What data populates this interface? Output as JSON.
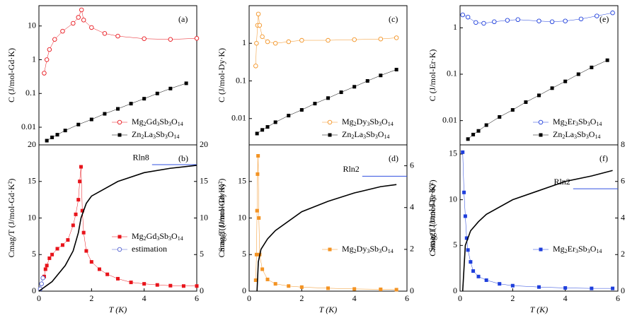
{
  "chart_data": [
    {
      "type": "line",
      "label": "(a)",
      "ylabel": "C (J/mol-Gd·K)",
      "log_y": true,
      "xlim": [
        0,
        6
      ],
      "ylim": [
        0.003,
        40
      ],
      "yticks": [
        0.01,
        0.1,
        1,
        10
      ],
      "legend": "lower right",
      "series": [
        {
          "name": "Mg2Gd3Sb3O14",
          "color": "#e8141b",
          "marker": "circle-open",
          "x": [
            0.2,
            0.3,
            0.4,
            0.6,
            0.9,
            1.3,
            1.5,
            1.62,
            1.7,
            2,
            2.5,
            3,
            4,
            5,
            6
          ],
          "values": [
            0.4,
            1,
            2,
            4,
            7,
            12,
            18,
            30,
            15,
            9,
            6,
            5,
            4.2,
            4,
            4.3
          ]
        },
        {
          "name": "Zn2La3Sb3O14",
          "color": "#000000",
          "marker": "square",
          "x": [
            0.3,
            0.5,
            0.7,
            1,
            1.5,
            2,
            2.5,
            3,
            3.5,
            4,
            4.5,
            5,
            5.6
          ],
          "values": [
            0.004,
            0.005,
            0.006,
            0.008,
            0.012,
            0.017,
            0.025,
            0.035,
            0.05,
            0.07,
            0.1,
            0.14,
            0.2
          ]
        }
      ]
    },
    {
      "type": "line",
      "label": "(c)",
      "ylabel": "C (J/mol-Dy·K)",
      "log_y": true,
      "xlim": [
        0,
        6
      ],
      "ylim": [
        0.002,
        10
      ],
      "yticks": [
        0.01,
        0.1,
        1
      ],
      "legend": "lower right",
      "series": [
        {
          "name": "Mg2Dy3Sb3O14",
          "color": "#f39323",
          "marker": "circle-open",
          "x": [
            0.25,
            0.28,
            0.32,
            0.35,
            0.4,
            0.5,
            0.7,
            1,
            1.5,
            2,
            3,
            4,
            5,
            5.6
          ],
          "values": [
            0.25,
            1,
            3,
            6,
            3,
            1.5,
            1.1,
            1,
            1.1,
            1.2,
            1.2,
            1.25,
            1.3,
            1.4
          ]
        },
        {
          "name": "Zn2La3Sb3O14",
          "color": "#000000",
          "marker": "square",
          "x": [
            0.3,
            0.5,
            0.7,
            1,
            1.5,
            2,
            2.5,
            3,
            3.5,
            4,
            4.5,
            5,
            5.6
          ],
          "values": [
            0.004,
            0.005,
            0.006,
            0.008,
            0.012,
            0.017,
            0.025,
            0.035,
            0.05,
            0.07,
            0.1,
            0.14,
            0.2
          ]
        }
      ]
    },
    {
      "type": "line",
      "label": "(e)",
      "ylabel": "C (J/mol-Er·K)",
      "log_y": true,
      "xlim": [
        0,
        6
      ],
      "ylim": [
        0.003,
        3
      ],
      "yticks": [
        0.01,
        0.1,
        1
      ],
      "legend": "lower right",
      "series": [
        {
          "name": "Mg2Er3Sb3O14",
          "color": "#1f3fdc",
          "marker": "circle-open",
          "x": [
            0.1,
            0.3,
            0.6,
            0.9,
            1.3,
            1.8,
            2.2,
            3,
            3.5,
            4,
            4.6,
            5.2,
            5.8
          ],
          "values": [
            1.9,
            1.7,
            1.3,
            1.25,
            1.35,
            1.45,
            1.5,
            1.4,
            1.35,
            1.4,
            1.55,
            1.8,
            2.1
          ]
        },
        {
          "name": "Zn2La3Sb3O14",
          "color": "#000000",
          "marker": "square",
          "x": [
            0.3,
            0.5,
            0.7,
            1,
            1.5,
            2,
            2.5,
            3,
            3.5,
            4,
            4.5,
            5,
            5.6
          ],
          "values": [
            0.004,
            0.005,
            0.006,
            0.008,
            0.012,
            0.017,
            0.025,
            0.035,
            0.05,
            0.07,
            0.1,
            0.14,
            0.2
          ]
        }
      ]
    },
    {
      "type": "line",
      "label": "(b)",
      "xlabel": "T (K)",
      "ylabel": "Cmag/T (J/mol-Gd·K²)",
      "y2label": "Smag (J/mol-Gd·K)",
      "xlim": [
        0,
        6
      ],
      "xticks": [
        0,
        2,
        4,
        6
      ],
      "ylim": [
        0,
        20
      ],
      "yticks": [
        0,
        5,
        10,
        15,
        20
      ],
      "y2lim": [
        0,
        20
      ],
      "y2ticks": [
        0,
        5,
        10,
        15,
        20
      ],
      "legend": "lower right",
      "series": [
        {
          "name": "Mg2Gd3Sb3O14",
          "color": "#e8141b",
          "marker": "square",
          "x": [
            0.2,
            0.25,
            0.3,
            0.4,
            0.5,
            0.7,
            0.9,
            1.1,
            1.3,
            1.4,
            1.5,
            1.55,
            1.6,
            1.65,
            1.7,
            1.8,
            2,
            2.3,
            2.6,
            3,
            3.5,
            4,
            4.5,
            5,
            5.5,
            6
          ],
          "values": [
            2,
            3,
            3.5,
            4.5,
            5,
            5.8,
            6.3,
            7,
            9,
            10.5,
            12.5,
            15,
            17,
            11,
            8,
            5.5,
            4,
            3,
            2.3,
            1.7,
            1.2,
            1,
            0.85,
            0.75,
            0.7,
            0.7
          ]
        },
        {
          "name": "estimation",
          "color": "#5060d0",
          "marker": "circle-open",
          "x": [
            0.05,
            0.1,
            0.15
          ],
          "values": [
            0.3,
            1,
            1.8
          ]
        },
        {
          "name": "Smag",
          "color": "#000000",
          "marker": "none",
          "axis": "y2",
          "x": [
            0,
            0.5,
            1,
            1.3,
            1.5,
            1.6,
            1.8,
            2,
            3,
            4,
            5,
            6
          ],
          "values": [
            0,
            1.3,
            3.5,
            5.5,
            8,
            10,
            12,
            13,
            15,
            16.2,
            16.8,
            17.2
          ]
        }
      ],
      "reference": {
        "label": "Rln8",
        "value": 17.3,
        "x": [
          4.3,
          6
        ]
      }
    },
    {
      "type": "line",
      "label": "(d)",
      "xlabel": "T (K)",
      "ylabel": "Cmag/T (J/mol-Dy·K²)",
      "y2label": "Smag (J/mol-Dy·K)",
      "xlim": [
        0,
        6
      ],
      "xticks": [
        0,
        2,
        4,
        6
      ],
      "ylim": [
        0,
        20
      ],
      "yticks": [
        0,
        5,
        10,
        15
      ],
      "y2lim": [
        0,
        7
      ],
      "y2ticks": [
        0,
        2,
        4,
        6
      ],
      "legend": "lower right",
      "series": [
        {
          "name": "Mg2Dy3Sb3O14",
          "color": "#f39323",
          "marker": "square",
          "x": [
            0.25,
            0.28,
            0.3,
            0.32,
            0.34,
            0.37,
            0.4,
            0.5,
            0.7,
            1,
            1.5,
            2,
            3,
            4,
            5,
            5.6
          ],
          "values": [
            1.5,
            5,
            11,
            16,
            18.5,
            10,
            5,
            3,
            1.6,
            1,
            0.7,
            0.55,
            0.4,
            0.3,
            0.25,
            0.2
          ]
        },
        {
          "name": "Smag",
          "color": "#000000",
          "marker": "none",
          "axis": "y2",
          "x": [
            0.3,
            0.35,
            0.45,
            0.7,
            1,
            2,
            3,
            4,
            5,
            5.6
          ],
          "values": [
            0,
            1.4,
            2,
            2.5,
            2.9,
            3.8,
            4.3,
            4.7,
            5,
            5.1
          ]
        }
      ],
      "reference": {
        "label": "Rln2",
        "value": 5.5,
        "x": [
          4.3,
          6
        ]
      }
    },
    {
      "type": "line",
      "label": "(f)",
      "xlabel": "T (K)",
      "ylabel": "Cmag/T (J/mol-Er·K²)",
      "y2label": "Smag (J/mol-Gd·K)",
      "xlim": [
        0,
        6
      ],
      "xticks": [
        0,
        2,
        4,
        6
      ],
      "ylim": [
        0,
        16
      ],
      "yticks": [
        0,
        5,
        10,
        15
      ],
      "y2lim": [
        0,
        8
      ],
      "y2ticks": [
        0,
        2,
        4,
        6,
        8
      ],
      "legend": "lower right",
      "series": [
        {
          "name": "Mg2Er3Sb3O14",
          "color": "#1f3fdc",
          "marker": "square",
          "x": [
            0.1,
            0.15,
            0.2,
            0.25,
            0.3,
            0.4,
            0.5,
            0.7,
            1,
            1.5,
            2,
            3,
            4,
            5,
            5.8
          ],
          "values": [
            15.2,
            10.8,
            8.2,
            5.8,
            4.5,
            3.2,
            2.2,
            1.6,
            1.2,
            0.8,
            0.6,
            0.45,
            0.35,
            0.3,
            0.3
          ]
        },
        {
          "name": "Smag",
          "color": "#000000",
          "marker": "none",
          "axis": "y2",
          "x": [
            0.1,
            0.2,
            0.4,
            0.7,
            1,
            2,
            3,
            4,
            5,
            5.8
          ],
          "values": [
            0,
            2.5,
            3.3,
            3.8,
            4.2,
            5,
            5.5,
            6,
            6.3,
            6.6
          ]
        }
      ],
      "reference": {
        "label": "Rln2",
        "value": 5.6,
        "x": [
          4.3,
          6
        ]
      }
    }
  ]
}
